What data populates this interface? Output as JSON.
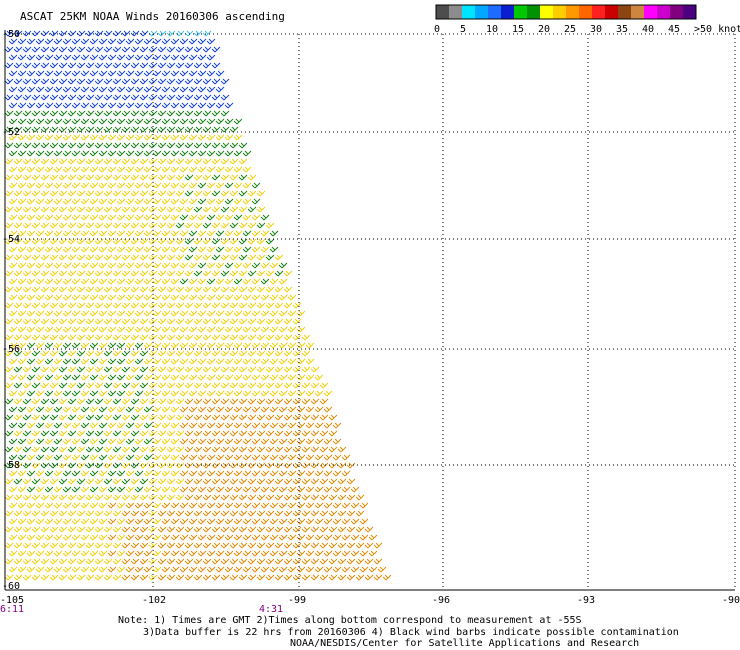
{
  "title": "ASCAT 25KM NOAA Winds 20160306 ascending",
  "legend": {
    "colors": [
      "#4d4d4d",
      "#8c8c8c",
      "#00e5ff",
      "#00a8ff",
      "#1e6bff",
      "#0a1fd0",
      "#00c800",
      "#009000",
      "#ffff00",
      "#ffcc00",
      "#ff9900",
      "#ff6600",
      "#ff2020",
      "#cc0000",
      "#8b4513",
      "#cd853f",
      "#ff00ff",
      "#cc00cc",
      "#800080",
      "#4b0082"
    ],
    "labels": [
      "0",
      "5",
      "10",
      "15",
      "20",
      "25",
      "30",
      "35",
      "40",
      "45",
      ">50 knots"
    ]
  },
  "axes": {
    "lat_labels": [
      "-50",
      "-52",
      "-54",
      "-56",
      "-58",
      "-60"
    ],
    "lon_labels": [
      "-105",
      "-102",
      "-99",
      "-96",
      "-93",
      "-90"
    ]
  },
  "times": [
    "6:11",
    "4:31"
  ],
  "notes": [
    "Note: 1) Times are GMT 2)Times along bottom correspond to measurement at -55S",
    "3)Data buffer is 22 hrs from 20160306 4) Black wind barbs indicate possible contamination",
    "NOAA/NESDIS/Center for Satellite Applications and Research"
  ],
  "colors": {
    "grid": "#000000",
    "time_label": "#800080",
    "barb_blue": "#1040e0",
    "barb_green": "#108010",
    "barb_yellow": "#f0d000",
    "barb_orange": "#e08a00",
    "barb_cyan": "#40c0f0"
  }
}
